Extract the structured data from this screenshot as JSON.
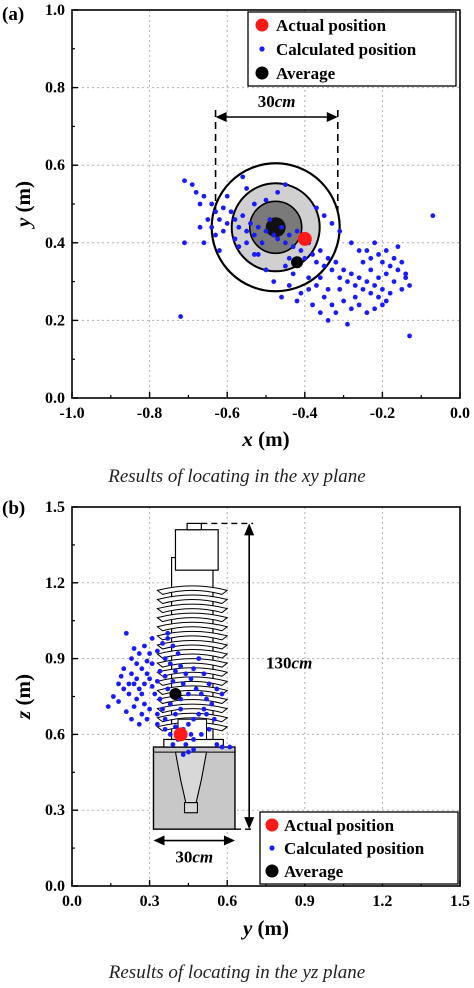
{
  "charts_meta": {
    "colors": {
      "actual": "#ff1a1a",
      "calculated": "#1a1aff",
      "average": "#000000",
      "grid": "#b0b0b0"
    }
  },
  "chart_data": [
    {
      "panel_label": "(a)",
      "type": "scatter",
      "title": "",
      "xlabel": "x",
      "xlabel_unit": " (m)",
      "ylabel": "y",
      "ylabel_unit": " (m)",
      "xlim": [
        -1.0,
        0.0
      ],
      "ylim": [
        0.0,
        1.0
      ],
      "xticks": [
        "-1.0",
        "-0.8",
        "-0.6",
        "-0.4",
        "-0.2",
        "0.0"
      ],
      "yticks": [
        "0.0",
        "0.2",
        "0.4",
        "0.6",
        "0.8",
        "1.0"
      ],
      "grid": true,
      "legend_position": "top-right",
      "legend": [
        "Actual position",
        "Calculated position",
        "Average"
      ],
      "annotation_value": "30",
      "annotation_unit": "cm",
      "caption": "Results of locating in the xy plane",
      "series": [
        {
          "name": "Actual position",
          "points": [
            [
              -0.4,
              0.41
            ]
          ]
        },
        {
          "name": "Average",
          "points": [
            [
              -0.42,
              0.35
            ]
          ]
        },
        {
          "name": "Calculated position",
          "points": [
            [
              -0.71,
              0.56
            ],
            [
              -0.69,
              0.55
            ],
            [
              -0.68,
              0.53
            ],
            [
              -0.67,
              0.5
            ],
            [
              -0.66,
              0.52
            ],
            [
              -0.64,
              0.5
            ],
            [
              -0.63,
              0.48
            ],
            [
              -0.62,
              0.46
            ],
            [
              -0.61,
              0.49
            ],
            [
              -0.6,
              0.45
            ],
            [
              -0.59,
              0.48
            ],
            [
              -0.58,
              0.46
            ],
            [
              -0.57,
              0.44
            ],
            [
              -0.56,
              0.47
            ],
            [
              -0.55,
              0.43
            ],
            [
              -0.54,
              0.45
            ],
            [
              -0.53,
              0.42
            ],
            [
              -0.52,
              0.44
            ],
            [
              -0.51,
              0.4
            ],
            [
              -0.5,
              0.43
            ],
            [
              -0.49,
              0.46
            ],
            [
              -0.48,
              0.42
            ],
            [
              -0.47,
              0.41
            ],
            [
              -0.46,
              0.44
            ],
            [
              -0.45,
              0.4
            ],
            [
              -0.44,
              0.42
            ],
            [
              -0.43,
              0.39
            ],
            [
              -0.42,
              0.43
            ],
            [
              -0.41,
              0.38
            ],
            [
              -0.4,
              0.36
            ],
            [
              -0.39,
              0.4
            ],
            [
              -0.38,
              0.37
            ],
            [
              -0.37,
              0.35
            ],
            [
              -0.36,
              0.38
            ],
            [
              -0.35,
              0.34
            ],
            [
              -0.34,
              0.36
            ],
            [
              -0.33,
              0.33
            ],
            [
              -0.32,
              0.35
            ],
            [
              -0.31,
              0.31
            ],
            [
              -0.3,
              0.33
            ],
            [
              -0.29,
              0.3
            ],
            [
              -0.28,
              0.32
            ],
            [
              -0.27,
              0.29
            ],
            [
              -0.26,
              0.31
            ],
            [
              -0.25,
              0.28
            ],
            [
              -0.24,
              0.3
            ],
            [
              -0.23,
              0.27
            ],
            [
              -0.22,
              0.29
            ],
            [
              -0.21,
              0.26
            ],
            [
              -0.2,
              0.28
            ],
            [
              -0.19,
              0.25
            ],
            [
              -0.18,
              0.27
            ],
            [
              -0.17,
              0.3
            ],
            [
              -0.16,
              0.33
            ],
            [
              -0.15,
              0.28
            ],
            [
              -0.14,
              0.31
            ],
            [
              -0.13,
              0.16
            ],
            [
              -0.07,
              0.47
            ],
            [
              -0.72,
              0.21
            ],
            [
              -0.71,
              0.4
            ],
            [
              -0.67,
              0.44
            ],
            [
              -0.66,
              0.4
            ],
            [
              -0.65,
              0.46
            ],
            [
              -0.63,
              0.42
            ],
            [
              -0.6,
              0.52
            ],
            [
              -0.56,
              0.57
            ],
            [
              -0.55,
              0.54
            ],
            [
              -0.53,
              0.5
            ],
            [
              -0.52,
              0.37
            ],
            [
              -0.5,
              0.33
            ],
            [
              -0.48,
              0.3
            ],
            [
              -0.46,
              0.26
            ],
            [
              -0.44,
              0.29
            ],
            [
              -0.42,
              0.25
            ],
            [
              -0.41,
              0.27
            ],
            [
              -0.39,
              0.28
            ],
            [
              -0.38,
              0.24
            ],
            [
              -0.36,
              0.22
            ],
            [
              -0.35,
              0.26
            ],
            [
              -0.34,
              0.2
            ],
            [
              -0.33,
              0.24
            ],
            [
              -0.32,
              0.22
            ],
            [
              -0.3,
              0.25
            ],
            [
              -0.29,
              0.19
            ],
            [
              -0.28,
              0.23
            ],
            [
              -0.27,
              0.26
            ],
            [
              -0.26,
              0.24
            ],
            [
              -0.25,
              0.35
            ],
            [
              -0.24,
              0.38
            ],
            [
              -0.23,
              0.36
            ],
            [
              -0.22,
              0.4
            ],
            [
              -0.21,
              0.37
            ],
            [
              -0.2,
              0.35
            ],
            [
              -0.19,
              0.38
            ],
            [
              -0.18,
              0.34
            ],
            [
              -0.17,
              0.36
            ],
            [
              -0.16,
              0.39
            ],
            [
              -0.15,
              0.35
            ],
            [
              -0.14,
              0.32
            ],
            [
              -0.13,
              0.29
            ],
            [
              -0.24,
              0.22
            ],
            [
              -0.22,
              0.23
            ],
            [
              -0.2,
              0.24
            ],
            [
              -0.23,
              0.33
            ],
            [
              -0.21,
              0.31
            ],
            [
              -0.19,
              0.32
            ],
            [
              -0.26,
              0.38
            ],
            [
              -0.28,
              0.4
            ],
            [
              -0.31,
              0.43
            ],
            [
              -0.33,
              0.45
            ],
            [
              -0.35,
              0.47
            ],
            [
              -0.37,
              0.49
            ],
            [
              -0.45,
              0.55
            ],
            [
              -0.47,
              0.53
            ],
            [
              -0.5,
              0.51
            ],
            [
              -0.57,
              0.39
            ],
            [
              -0.58,
              0.41
            ],
            [
              -0.61,
              0.43
            ],
            [
              -0.62,
              0.38
            ],
            [
              -0.64,
              0.44
            ],
            [
              -0.53,
              0.37
            ],
            [
              -0.55,
              0.4
            ],
            [
              -0.44,
              0.36
            ],
            [
              -0.43,
              0.32
            ],
            [
              -0.45,
              0.34
            ],
            [
              -0.39,
              0.31
            ],
            [
              -0.37,
              0.29
            ],
            [
              -0.36,
              0.31
            ],
            [
              -0.34,
              0.28
            ],
            [
              -0.31,
              0.28
            ]
          ]
        }
      ]
    },
    {
      "panel_label": "(b)",
      "type": "scatter",
      "title": "",
      "xlabel": "y",
      "xlabel_unit": " (m)",
      "ylabel": "z",
      "ylabel_unit": " (m)",
      "xlim": [
        0.0,
        1.5
      ],
      "ylim": [
        0.0,
        1.5
      ],
      "xticks": [
        "0.0",
        "0.3",
        "0.6",
        "0.9",
        "1.2",
        "1.5"
      ],
      "yticks": [
        "0.0",
        "0.3",
        "0.6",
        "0.9",
        "1.2",
        "1.5"
      ],
      "grid": true,
      "legend_position": "bottom-right",
      "legend": [
        "Actual position",
        "Calculated position",
        "Average"
      ],
      "annotation_height_value": "130",
      "annotation_width_value": "30",
      "annotation_unit": "cm",
      "caption": "Results of locating in the yz plane",
      "series": [
        {
          "name": "Actual position",
          "points": [
            [
              0.42,
              0.6
            ]
          ]
        },
        {
          "name": "Average",
          "points": [
            [
              0.4,
              0.76
            ]
          ]
        },
        {
          "name": "Calculated position",
          "points": [
            [
              0.21,
              1.0
            ],
            [
              0.23,
              0.9
            ],
            [
              0.2,
              0.86
            ],
            [
              0.19,
              0.83
            ],
            [
              0.24,
              0.8
            ],
            [
              0.26,
              0.78
            ],
            [
              0.22,
              0.76
            ],
            [
              0.25,
              0.74
            ],
            [
              0.28,
              0.72
            ],
            [
              0.3,
              0.7
            ],
            [
              0.27,
              0.68
            ],
            [
              0.24,
              0.71
            ],
            [
              0.21,
              0.69
            ],
            [
              0.18,
              0.73
            ],
            [
              0.16,
              0.75
            ],
            [
              0.14,
              0.71
            ],
            [
              0.23,
              0.66
            ],
            [
              0.26,
              0.64
            ],
            [
              0.29,
              0.66
            ],
            [
              0.31,
              0.79
            ],
            [
              0.33,
              0.81
            ],
            [
              0.29,
              0.84
            ],
            [
              0.27,
              0.86
            ],
            [
              0.25,
              0.88
            ],
            [
              0.31,
              0.88
            ],
            [
              0.34,
              0.85
            ],
            [
              0.36,
              0.9
            ],
            [
              0.33,
              0.93
            ],
            [
              0.35,
              0.96
            ],
            [
              0.37,
              0.98
            ],
            [
              0.39,
              0.95
            ],
            [
              0.41,
              0.92
            ],
            [
              0.38,
              0.88
            ],
            [
              0.4,
              0.85
            ],
            [
              0.42,
              0.87
            ],
            [
              0.44,
              0.84
            ],
            [
              0.46,
              0.82
            ],
            [
              0.48,
              0.78
            ],
            [
              0.5,
              0.76
            ],
            [
              0.52,
              0.74
            ],
            [
              0.54,
              0.72
            ],
            [
              0.51,
              0.7
            ],
            [
              0.49,
              0.68
            ],
            [
              0.47,
              0.66
            ],
            [
              0.45,
              0.64
            ],
            [
              0.43,
              0.62
            ],
            [
              0.41,
              0.58
            ],
            [
              0.39,
              0.56
            ],
            [
              0.44,
              0.56
            ],
            [
              0.47,
              0.58
            ],
            [
              0.5,
              0.6
            ],
            [
              0.53,
              0.62
            ],
            [
              0.55,
              0.66
            ],
            [
              0.52,
              0.68
            ],
            [
              0.56,
              0.56
            ],
            [
              0.58,
              0.55
            ],
            [
              0.61,
              0.55
            ],
            [
              0.35,
              0.7
            ],
            [
              0.33,
              0.68
            ],
            [
              0.36,
              0.66
            ],
            [
              0.38,
              0.72
            ],
            [
              0.42,
              0.74
            ],
            [
              0.45,
              0.76
            ],
            [
              0.43,
              0.8
            ],
            [
              0.47,
              0.86
            ],
            [
              0.49,
              0.9
            ],
            [
              0.3,
              0.92
            ],
            [
              0.28,
              0.95
            ],
            [
              0.26,
              0.92
            ],
            [
              0.32,
              0.76
            ],
            [
              0.34,
              0.74
            ],
            [
              0.37,
              0.78
            ],
            [
              0.3,
              0.82
            ],
            [
              0.28,
              0.8
            ],
            [
              0.27,
              0.76
            ],
            [
              0.25,
              0.82
            ],
            [
              0.23,
              0.84
            ],
            [
              0.22,
              0.8
            ],
            [
              0.2,
              0.78
            ],
            [
              0.18,
              0.8
            ],
            [
              0.4,
              0.68
            ],
            [
              0.42,
              0.7
            ],
            [
              0.36,
              0.62
            ],
            [
              0.38,
              0.6
            ],
            [
              0.4,
              0.63
            ],
            [
              0.46,
              0.6
            ],
            [
              0.43,
              0.52
            ],
            [
              0.45,
              0.53
            ],
            [
              0.47,
              0.54
            ],
            [
              0.37,
              1.0
            ],
            [
              0.31,
              0.98
            ],
            [
              0.29,
              0.89
            ],
            [
              0.24,
              0.94
            ],
            [
              0.36,
              0.83
            ],
            [
              0.39,
              0.81
            ],
            [
              0.53,
              0.8
            ],
            [
              0.56,
              0.78
            ],
            [
              0.58,
              0.76
            ],
            [
              0.51,
              0.84
            ],
            [
              0.33,
              0.64
            ]
          ]
        }
      ]
    }
  ]
}
